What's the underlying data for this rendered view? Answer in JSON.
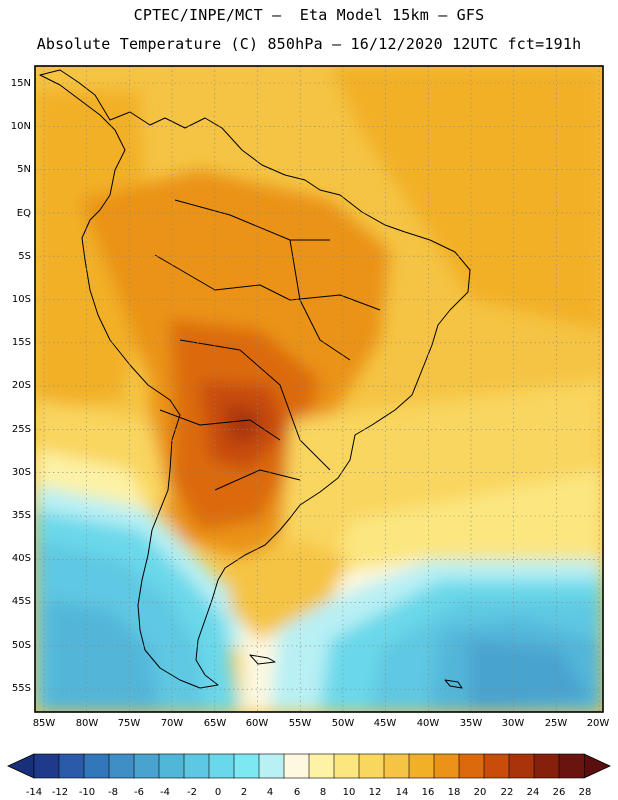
{
  "title_line1": "CPTEC/INPE/MCT –  Eta Model 15km – GFS",
  "title_line2": "Absolute Temperature (C) 850hPa – 16/12/2020 12UTC fct=191h",
  "lat_labels": [
    "15N",
    "10N",
    "5N",
    "EQ",
    "5S",
    "10S",
    "15S",
    "20S",
    "25S",
    "30S",
    "35S",
    "40S",
    "45S",
    "50S",
    "55S"
  ],
  "lon_labels": [
    "85W",
    "80W",
    "75W",
    "70W",
    "65W",
    "60W",
    "55W",
    "50W",
    "45W",
    "40W",
    "35W",
    "30W",
    "25W",
    "20W"
  ],
  "colorbar": {
    "labels": [
      "-14",
      "-12",
      "-10",
      "-8",
      "-6",
      "-4",
      "-2",
      "0",
      "2",
      "4",
      "6",
      "8",
      "10",
      "12",
      "14",
      "16",
      "18",
      "20",
      "22",
      "24",
      "26",
      "28"
    ],
    "colors": [
      "#1f3a8a",
      "#2a5aa8",
      "#3377bb",
      "#3f8fc6",
      "#4aa3cf",
      "#52b6d9",
      "#5ec8e2",
      "#6ad8ea",
      "#7ee8f2",
      "#b8f0f4",
      "#fdf8e0",
      "#fdf2a6",
      "#fbe680",
      "#f9d65e",
      "#f5c444",
      "#f2b028",
      "#ea9318",
      "#dc6a0c",
      "#c84c0a",
      "#a8340a",
      "#85200c",
      "#6a1410"
    ],
    "left_end_color": "#18307a",
    "right_end_color": "#5a0e0e"
  }
}
